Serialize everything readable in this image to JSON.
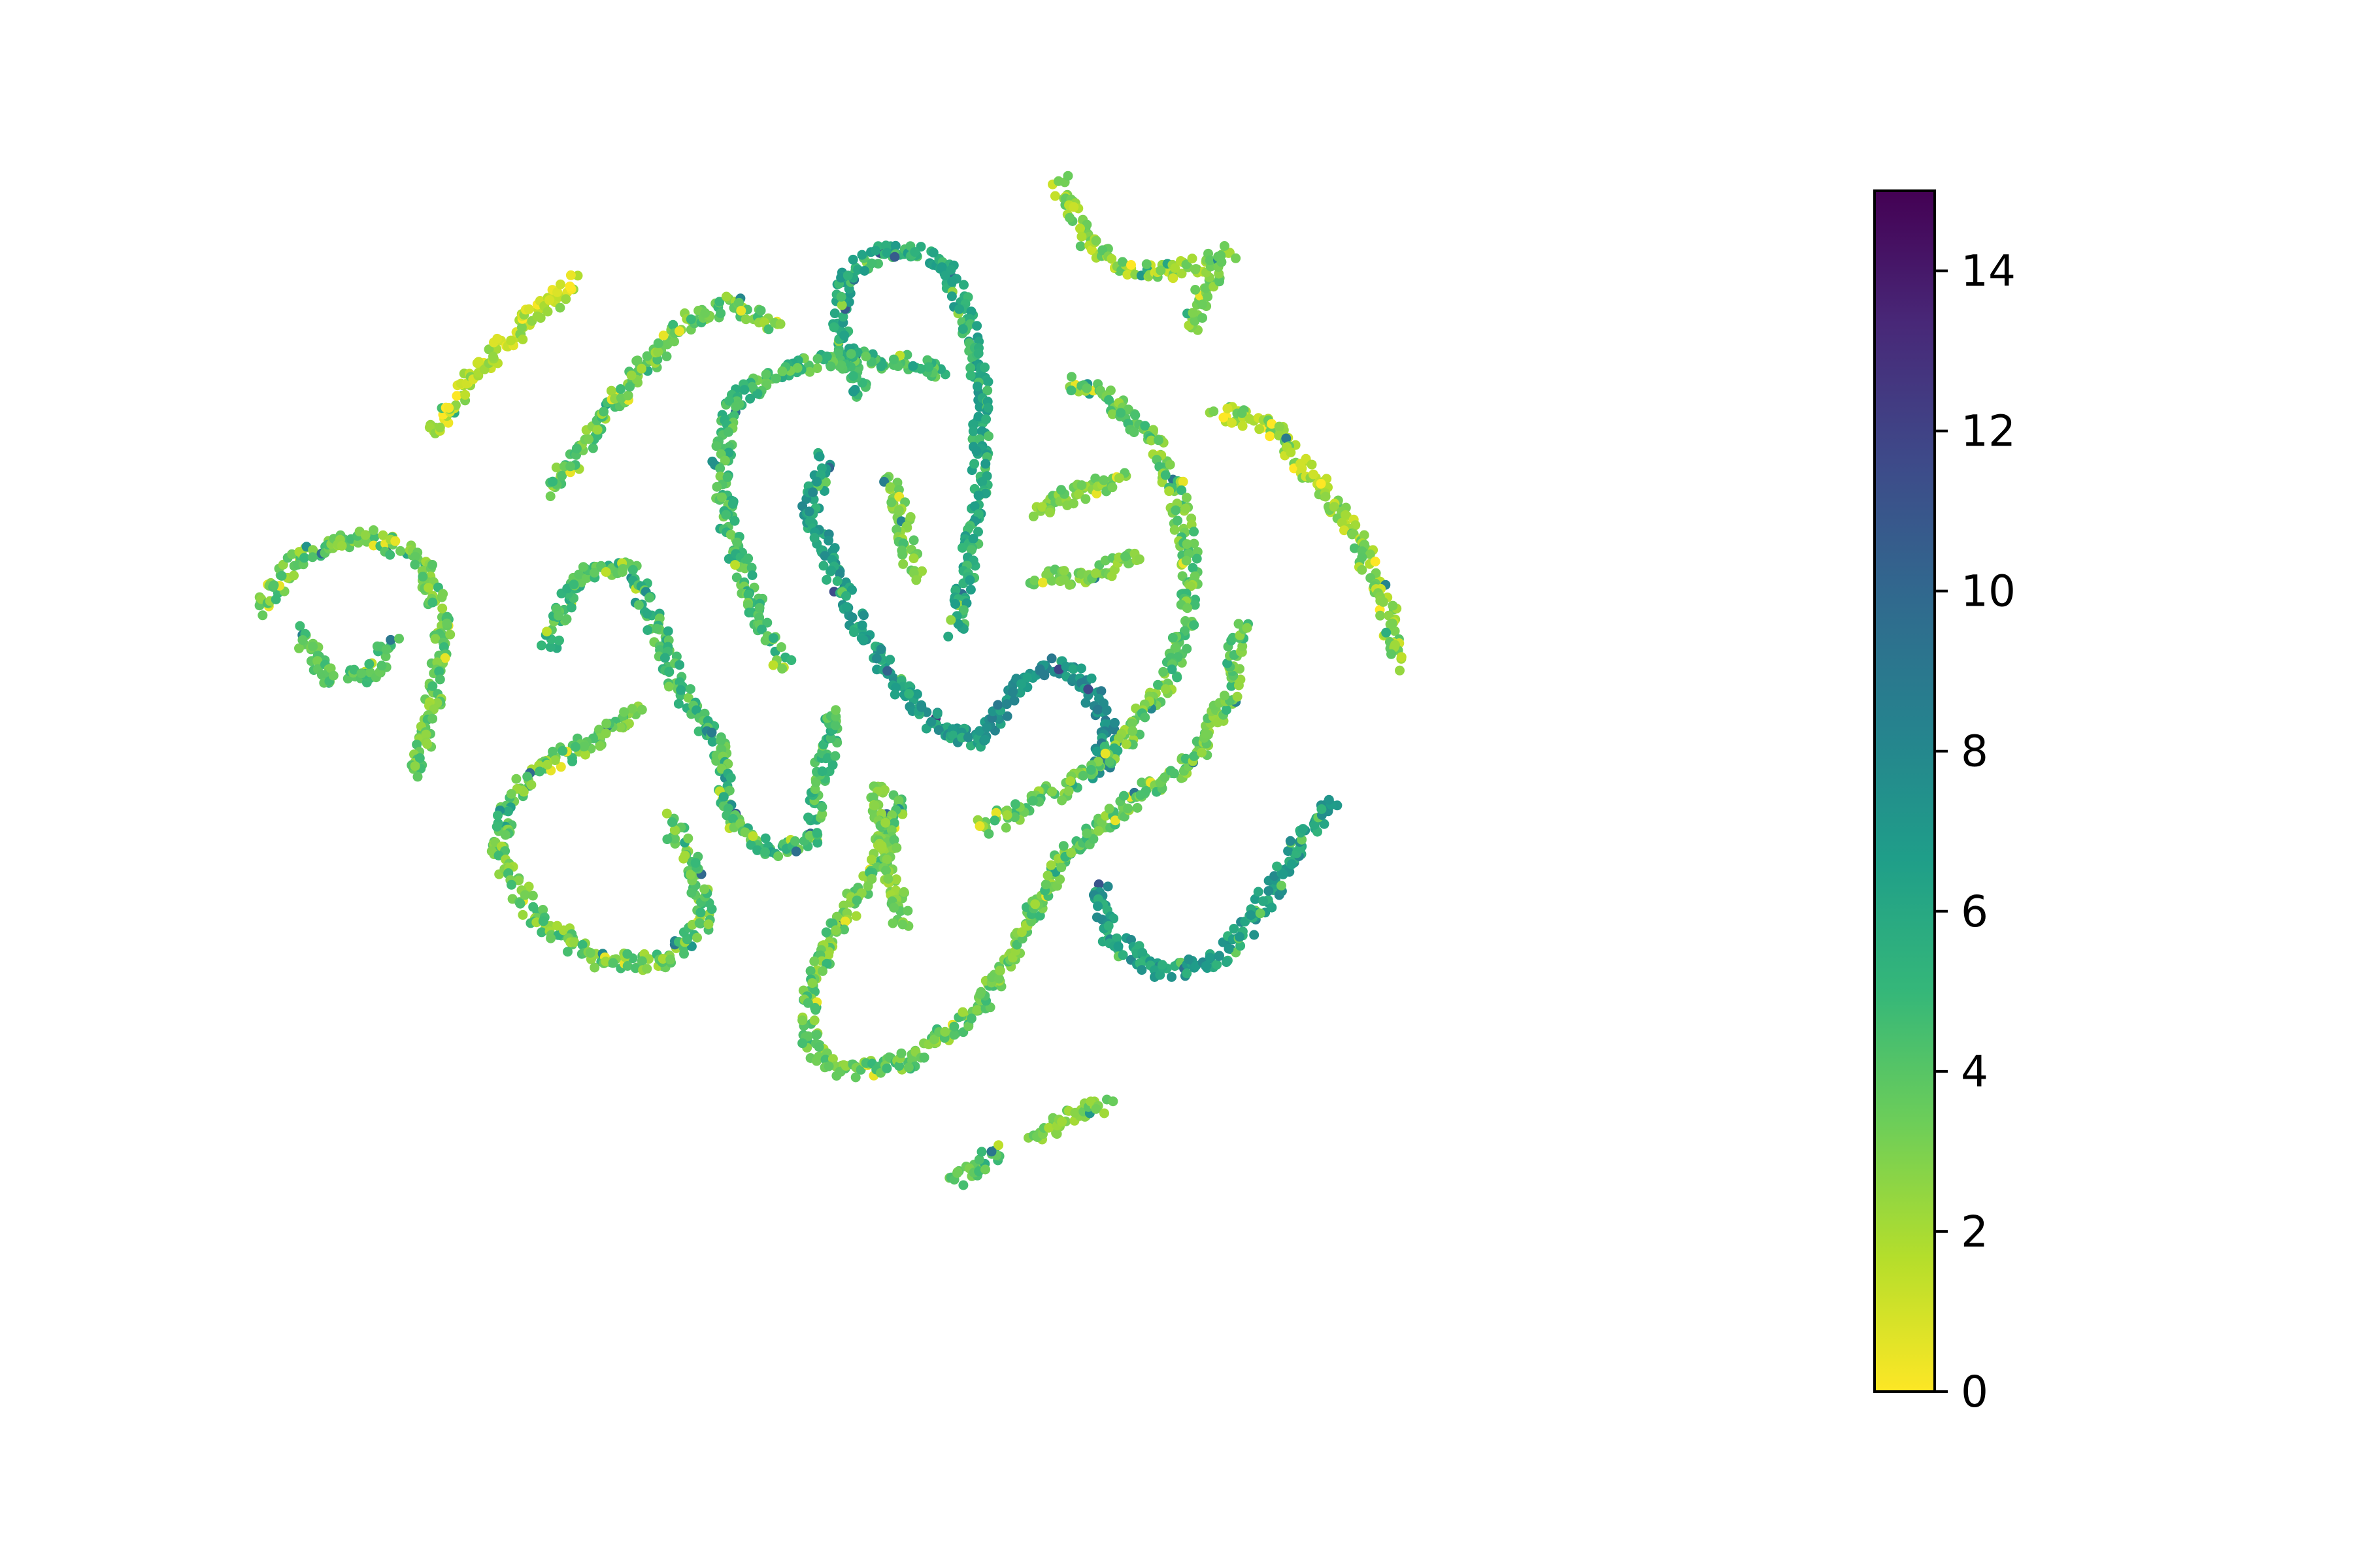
{
  "chart_data": {
    "type": "scatter",
    "title": "",
    "xlabel": "",
    "ylabel": "",
    "axes_visible": false,
    "grid": false,
    "legend": "none",
    "color_scale": {
      "name": "viridis (reversed)",
      "min": 0,
      "max": 15,
      "tick_values": [
        0,
        2,
        4,
        6,
        8,
        10,
        12,
        14
      ],
      "tick_labels": [
        "0",
        "2",
        "4",
        "6",
        "8",
        "10",
        "12",
        "14"
      ],
      "stops": [
        "#fde725",
        "#b5de2b",
        "#6ece58",
        "#35b779",
        "#1f9e89",
        "#26828e",
        "#31688e",
        "#3e4989",
        "#482878",
        "#440154"
      ]
    },
    "xlim": [
      0,
      100
    ],
    "ylim": [
      0,
      100
    ],
    "clusters": [
      {
        "path": [
          [
            5,
            83
          ],
          [
            8,
            88
          ],
          [
            12,
            93
          ],
          [
            16,
            97
          ]
        ],
        "value_range": [
          0,
          3
        ]
      },
      {
        "path": [
          [
            14,
            78
          ],
          [
            18,
            84
          ],
          [
            21,
            89
          ],
          [
            24,
            93
          ],
          [
            28,
            95
          ],
          [
            32,
            93
          ]
        ],
        "value_range": [
          2,
          5
        ]
      },
      {
        "path": [
          [
            38,
            87
          ],
          [
            36,
            93
          ],
          [
            37,
            98
          ],
          [
            40,
            100
          ],
          [
            44,
            99
          ],
          [
            46,
            94
          ],
          [
            47,
            87
          ],
          [
            47,
            79
          ],
          [
            46,
            71
          ],
          [
            45,
            65
          ]
        ],
        "value_range": [
          4,
          7
        ]
      },
      {
        "path": [
          [
            44,
            89
          ],
          [
            38,
            90
          ],
          [
            32,
            89
          ],
          [
            28,
            86
          ],
          [
            27,
            80
          ],
          [
            28,
            73
          ],
          [
            30,
            67
          ],
          [
            32,
            62
          ]
        ],
        "value_range": [
          3,
          6
        ]
      },
      {
        "path": [
          [
            35,
            81
          ],
          [
            34,
            76
          ],
          [
            36,
            70
          ],
          [
            38,
            65
          ],
          [
            41,
            60
          ],
          [
            44,
            56
          ],
          [
            47,
            55
          ]
        ],
        "value_range": [
          5,
          8
        ]
      },
      {
        "path": [
          [
            47,
            55
          ],
          [
            49,
            59
          ],
          [
            52,
            62
          ],
          [
            55,
            61
          ],
          [
            57,
            56
          ],
          [
            56,
            52
          ]
        ],
        "value_range": [
          6,
          9
        ]
      },
      {
        "path": [
          [
            40,
            79
          ],
          [
            41,
            75
          ],
          [
            42,
            70
          ]
        ],
        "value_range": [
          2,
          4
        ]
      },
      {
        "path": [
          [
            54,
            88
          ],
          [
            57,
            86
          ],
          [
            60,
            83
          ],
          [
            62,
            78
          ],
          [
            63,
            72
          ],
          [
            63,
            66
          ],
          [
            61,
            60
          ],
          [
            58,
            55
          ],
          [
            54,
            51
          ],
          [
            50,
            49
          ],
          [
            47,
            47
          ]
        ],
        "value_range": [
          2,
          5
        ]
      },
      {
        "path": [
          [
            51,
            76
          ],
          [
            55,
            78
          ],
          [
            58,
            79
          ]
        ],
        "value_range": [
          2,
          4
        ]
      },
      {
        "path": [
          [
            51,
            70
          ],
          [
            55,
            70
          ],
          [
            59,
            72
          ]
        ],
        "value_range": [
          2,
          4
        ]
      },
      {
        "path": [
          [
            53,
            106
          ],
          [
            55,
            101
          ],
          [
            58,
            98
          ],
          [
            62,
            98
          ],
          [
            65,
            99
          ]
        ],
        "value_range": [
          1,
          4
        ]
      },
      {
        "path": [
          [
            63,
            93
          ],
          [
            64,
            96
          ],
          [
            66,
            100
          ]
        ],
        "value_range": [
          2,
          4
        ]
      },
      {
        "path": [
          [
            65,
            85
          ],
          [
            69,
            84
          ],
          [
            72,
            80
          ],
          [
            75,
            75
          ],
          [
            78,
            68
          ],
          [
            79,
            62
          ]
        ],
        "value_range": [
          1,
          4
        ]
      },
      {
        "path": [
          [
            -8,
            67
          ],
          [
            -5,
            72
          ],
          [
            0,
            74
          ],
          [
            4,
            72
          ],
          [
            6,
            66
          ],
          [
            5,
            58
          ],
          [
            4,
            52
          ]
        ],
        "value_range": [
          2,
          5
        ]
      },
      {
        "path": [
          [
            -5,
            65
          ],
          [
            -3,
            61
          ],
          [
            0,
            61
          ],
          [
            2,
            64
          ]
        ],
        "value_range": [
          3,
          5
        ]
      },
      {
        "path": [
          [
            14,
            64
          ],
          [
            16,
            70
          ],
          [
            20,
            71
          ],
          [
            22,
            66
          ],
          [
            24,
            60
          ],
          [
            27,
            55
          ],
          [
            28,
            48
          ],
          [
            31,
            45
          ],
          [
            34,
            46
          ],
          [
            35,
            53
          ],
          [
            36,
            58
          ]
        ],
        "value_range": [
          3,
          6
        ]
      },
      {
        "path": [
          [
            21,
            58
          ],
          [
            17,
            55
          ],
          [
            14,
            53
          ],
          [
            11,
            50
          ],
          [
            10,
            45
          ],
          [
            13,
            39
          ],
          [
            18,
            35
          ],
          [
            23,
            35
          ],
          [
            26,
            39
          ],
          [
            25,
            44
          ],
          [
            23,
            48
          ]
        ],
        "value_range": [
          2,
          5
        ]
      },
      {
        "path": [
          [
            41,
            50
          ],
          [
            39,
            44
          ],
          [
            36,
            38
          ],
          [
            34,
            32
          ],
          [
            34,
            27
          ],
          [
            37,
            25
          ],
          [
            42,
            26
          ],
          [
            47,
            31
          ],
          [
            50,
            37
          ],
          [
            53,
            44
          ],
          [
            58,
            49
          ],
          [
            63,
            53
          ],
          [
            66,
            59
          ],
          [
            67,
            66
          ]
        ],
        "value_range": [
          2,
          5
        ]
      },
      {
        "path": [
          [
            39,
            51
          ],
          [
            40,
            45
          ],
          [
            41,
            38
          ]
        ],
        "value_range": [
          2,
          4
        ]
      },
      {
        "path": [
          [
            56,
            42
          ],
          [
            57,
            37
          ],
          [
            61,
            34
          ],
          [
            65,
            35
          ],
          [
            68,
            39
          ],
          [
            71,
            45
          ],
          [
            74,
            50
          ]
        ],
        "value_range": [
          5,
          8
        ]
      },
      {
        "path": [
          [
            51,
            19
          ],
          [
            54,
            21
          ],
          [
            57,
            22
          ]
        ],
        "value_range": [
          2,
          4
        ]
      },
      {
        "path": [
          [
            45,
            15
          ],
          [
            47,
            16.5
          ],
          [
            48.5,
            18
          ]
        ],
        "value_range": [
          3,
          5
        ]
      }
    ]
  }
}
